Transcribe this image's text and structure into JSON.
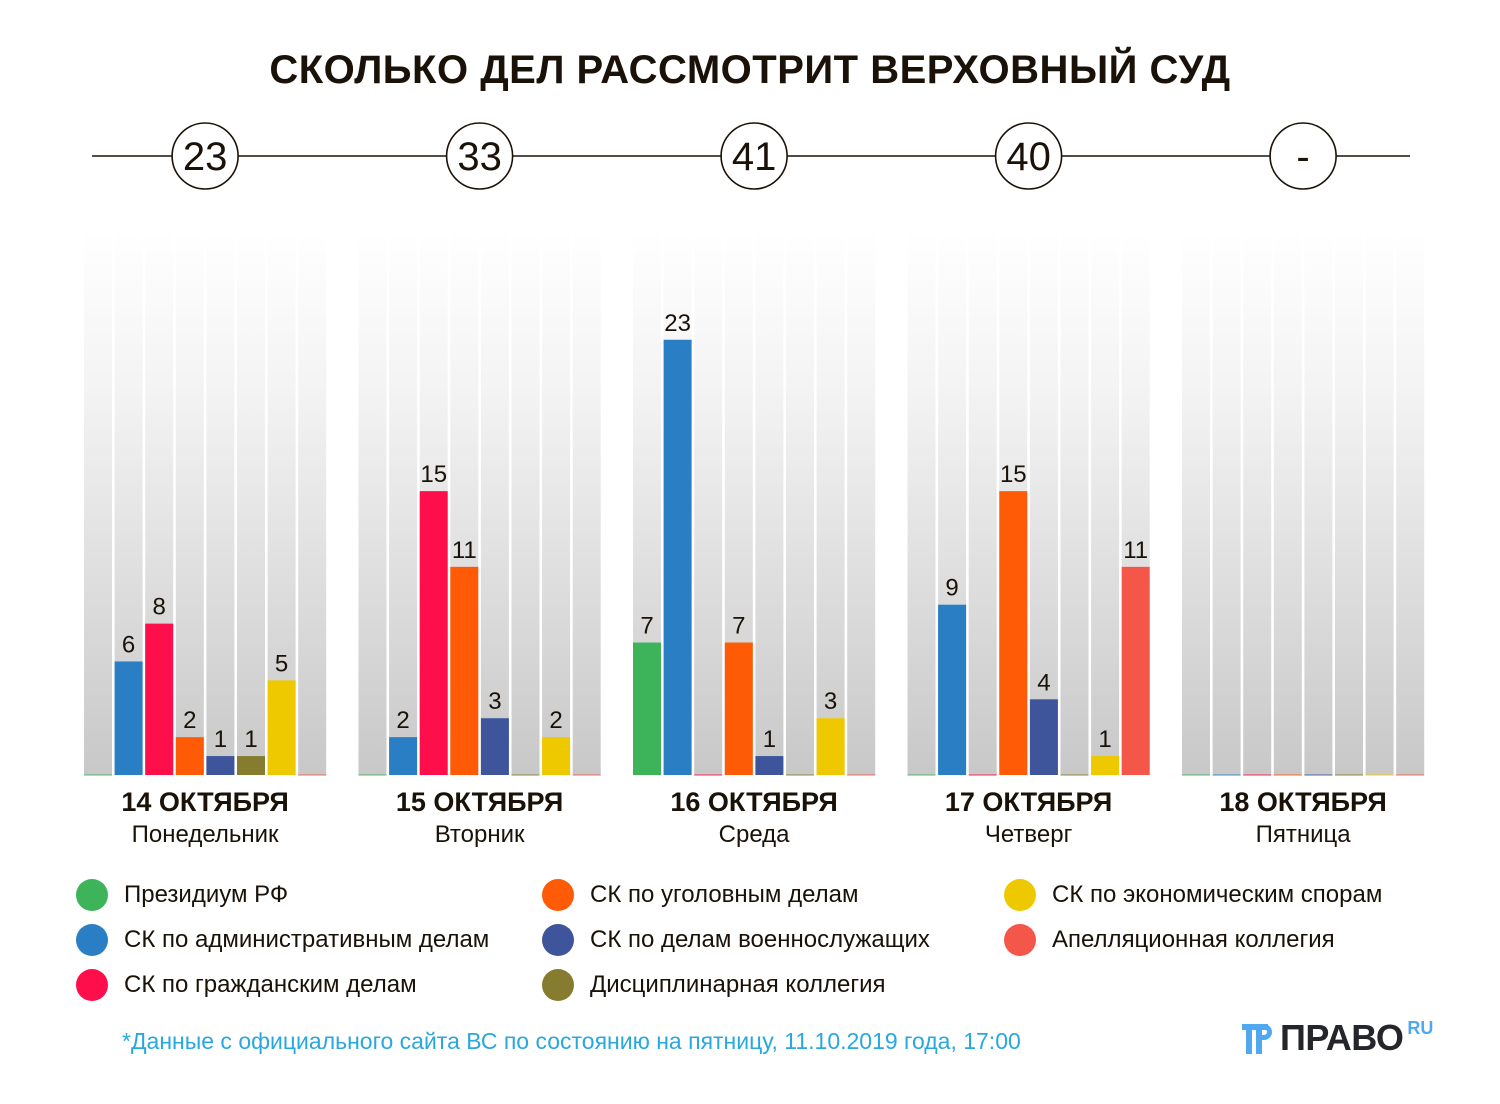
{
  "chart_data": {
    "type": "bar",
    "title": "СКОЛЬКО ДЕЛ РАССМОТРИТ ВЕРХОВНЫЙ СУД",
    "xlabel": "",
    "ylabel": "",
    "ylim": [
      0,
      28.8
    ],
    "grid": false,
    "legend_position": "bottom",
    "categories": [
      "14 ОКТЯБРЯ",
      "15 ОКТЯБРЯ",
      "16 ОКТЯБРЯ",
      "17 ОКТЯБРЯ",
      "18 ОКТЯБРЯ"
    ],
    "weekdays": [
      "Понедельник",
      "Вторник",
      "Среда",
      "Четверг",
      "Пятница"
    ],
    "totals": [
      "23",
      "33",
      "41",
      "40",
      "-"
    ],
    "series": [
      {
        "name": "Президиум РФ",
        "color": "#3eb45a",
        "values": [
          0,
          0,
          7,
          0,
          0
        ]
      },
      {
        "name": "СК по административным делам",
        "color": "#2a7fc4",
        "values": [
          6,
          2,
          23,
          9,
          0
        ]
      },
      {
        "name": "СК по гражданским делам",
        "color": "#ff0e4c",
        "values": [
          8,
          15,
          0,
          0,
          0
        ]
      },
      {
        "name": "СК по уголовным делам",
        "color": "#ff5a05",
        "values": [
          2,
          11,
          7,
          15,
          0
        ]
      },
      {
        "name": "СК по делам военнослужащих",
        "color": "#3e559c",
        "values": [
          1,
          3,
          1,
          4,
          0
        ]
      },
      {
        "name": "Дисциплинарная коллегия",
        "color": "#867c30",
        "values": [
          1,
          0,
          0,
          0,
          0
        ]
      },
      {
        "name": "СК по экономическим спорам",
        "color": "#eec900",
        "values": [
          5,
          2,
          3,
          1,
          0
        ]
      },
      {
        "name": "Апелляционная коллегия",
        "color": "#f4574a",
        "values": [
          0,
          0,
          0,
          11,
          0
        ]
      }
    ]
  },
  "footnote": "*Данные с официального сайта ВС по состоянию на пятницу, 11.10.2019 года, 17:00",
  "logo": {
    "text": "ПРАВО",
    "suffix": "RU",
    "accent": "#4fa8f0"
  }
}
